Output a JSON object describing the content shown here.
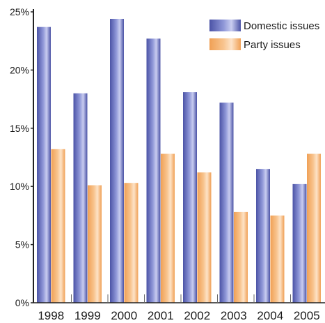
{
  "chart_data": {
    "type": "bar",
    "categories": [
      "1998",
      "1999",
      "2000",
      "2001",
      "2002",
      "2003",
      "2004",
      "2005"
    ],
    "series": [
      {
        "name": "Domestic issues",
        "values": [
          23.7,
          18.0,
          24.4,
          22.7,
          18.1,
          17.2,
          11.5,
          10.2
        ]
      },
      {
        "name": "Party issues",
        "values": [
          13.2,
          10.1,
          10.3,
          12.8,
          11.2,
          7.8,
          7.5,
          12.8
        ]
      }
    ],
    "ylim": [
      0,
      25
    ],
    "yticks": [
      0,
      5,
      10,
      15,
      20,
      25
    ],
    "ytick_labels": [
      "0%",
      "5%",
      "10%",
      "15%",
      "20%",
      "25%"
    ],
    "legend_position": "top-right",
    "grid": false,
    "colors": {
      "series_0": {
        "dark": "#4b53a6",
        "mid": "#8f97d8",
        "light": "#c9cdf0"
      },
      "series_1": {
        "dark": "#f0a055",
        "mid": "#f8c48e",
        "light": "#fde3c8"
      },
      "axis": "#222222"
    }
  }
}
